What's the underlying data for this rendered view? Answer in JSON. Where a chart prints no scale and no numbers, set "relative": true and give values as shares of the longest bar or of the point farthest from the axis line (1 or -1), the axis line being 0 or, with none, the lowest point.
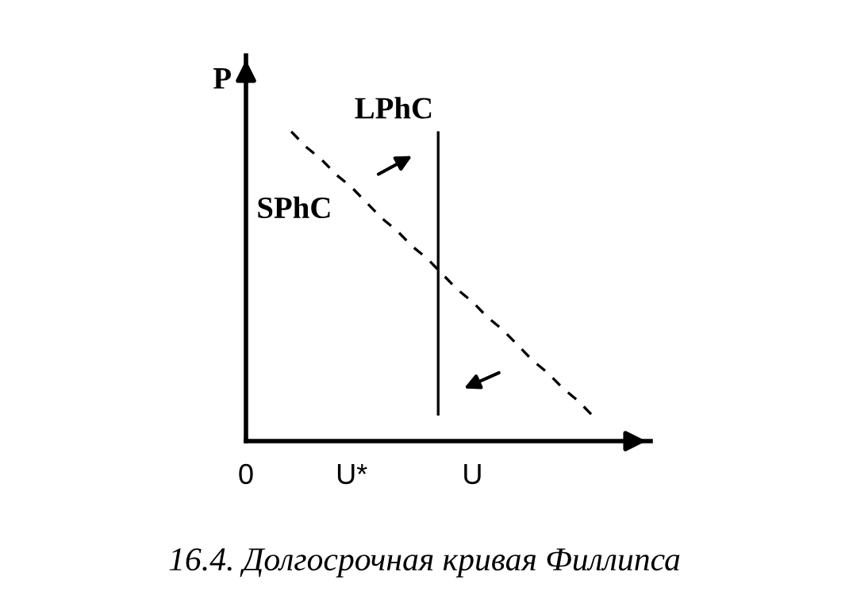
{
  "chart_data": {
    "type": "line",
    "relative": true,
    "title": "16.4. Долгосрочная кривая Филлипса",
    "ylabel": "P",
    "legend": false,
    "marker": "none",
    "categories": [
      "0",
      null,
      null,
      null,
      null,
      null,
      null,
      "U*",
      null,
      null,
      null,
      null,
      null,
      null,
      null,
      "U",
      null,
      null,
      null,
      null,
      null,
      null,
      null,
      null,
      null,
      null,
      null
    ],
    "annotations": [
      "LPhC"
    ],
    "series": [
      {
        "name": "SPhC",
        "color": "#000000",
        "line_style": "dashed",
        "values": [
          null,
          null,
          null,
          1,
          0.95,
          0.91,
          0.86,
          0.82,
          0.77,
          0.72,
          0.68,
          0.63,
          0.59,
          0.54,
          0.49,
          0.45,
          0.4,
          0.36,
          0.31,
          0.26,
          0.22,
          0.17,
          0.13,
          0.08,
          null,
          null,
          null
        ]
      }
    ]
  }
}
